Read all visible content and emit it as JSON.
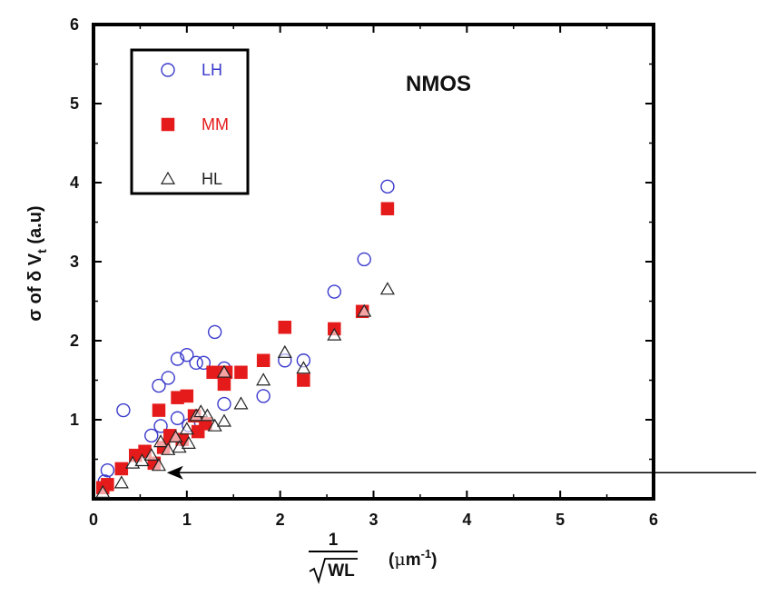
{
  "chart_data": {
    "type": "scatter",
    "title": "",
    "annotation": "NMOS",
    "xlabel": {
      "numerator": "1",
      "radicand": "WL",
      "unit_prefix": "(",
      "unit_mu": "μ",
      "unit_m": "m",
      "unit_exp": "-1",
      "unit_suffix": ")"
    },
    "ylabel": "σ of δ V",
    "ylabel_sub": "t",
    "ylabel_suffix": " (a.u)",
    "xlim": [
      0,
      6
    ],
    "ylim": [
      0,
      6
    ],
    "xticks": [
      "0",
      "1",
      "2",
      "3",
      "4",
      "5",
      "6"
    ],
    "yticks": [
      "1",
      "2",
      "3",
      "4",
      "5",
      "6"
    ],
    "legend_position": "top-left",
    "grid": false,
    "series": [
      {
        "name": "LH",
        "marker": "circle-open",
        "color": "#3a3acc",
        "points": [
          [
            0.12,
            0.22
          ],
          [
            0.15,
            0.36
          ],
          [
            0.32,
            1.12
          ],
          [
            0.62,
            0.8
          ],
          [
            0.7,
            1.43
          ],
          [
            0.72,
            0.92
          ],
          [
            0.8,
            1.53
          ],
          [
            0.9,
            1.77
          ],
          [
            0.9,
            1.02
          ],
          [
            1.0,
            1.82
          ],
          [
            1.02,
            0.93
          ],
          [
            1.1,
            1.72
          ],
          [
            1.18,
            1.72
          ],
          [
            1.3,
            2.11
          ],
          [
            1.4,
            1.65
          ],
          [
            1.4,
            1.2
          ],
          [
            1.82,
            1.3
          ],
          [
            2.05,
            1.75
          ],
          [
            2.25,
            1.75
          ],
          [
            2.58,
            2.62
          ],
          [
            2.9,
            3.03
          ],
          [
            3.15,
            3.95
          ]
        ]
      },
      {
        "name": "MM",
        "marker": "square-filled",
        "color": "#e51a1a",
        "points": [
          [
            0.1,
            0.14
          ],
          [
            0.15,
            0.18
          ],
          [
            0.3,
            0.38
          ],
          [
            0.45,
            0.55
          ],
          [
            0.55,
            0.6
          ],
          [
            0.65,
            0.45
          ],
          [
            0.7,
            1.12
          ],
          [
            0.75,
            0.65
          ],
          [
            0.82,
            0.8
          ],
          [
            0.9,
            1.28
          ],
          [
            0.95,
            0.75
          ],
          [
            1.0,
            1.3
          ],
          [
            1.08,
            1.05
          ],
          [
            1.12,
            0.85
          ],
          [
            1.2,
            0.95
          ],
          [
            1.28,
            1.6
          ],
          [
            1.4,
            1.45
          ],
          [
            1.42,
            1.6
          ],
          [
            1.58,
            1.6
          ],
          [
            1.82,
            1.75
          ],
          [
            2.05,
            2.17
          ],
          [
            2.25,
            1.5
          ],
          [
            2.58,
            2.15
          ],
          [
            2.88,
            2.37
          ],
          [
            3.15,
            3.67
          ]
        ]
      },
      {
        "name": "HL",
        "marker": "triangle-open",
        "color": "#222222",
        "points": [
          [
            0.1,
            0.08
          ],
          [
            0.3,
            0.2
          ],
          [
            0.42,
            0.45
          ],
          [
            0.52,
            0.48
          ],
          [
            0.62,
            0.55
          ],
          [
            0.7,
            0.42
          ],
          [
            0.72,
            0.72
          ],
          [
            0.8,
            0.62
          ],
          [
            0.88,
            0.78
          ],
          [
            0.92,
            0.65
          ],
          [
            1.0,
            0.88
          ],
          [
            1.02,
            0.7
          ],
          [
            1.1,
            1.05
          ],
          [
            1.15,
            1.1
          ],
          [
            1.22,
            1.05
          ],
          [
            1.3,
            0.92
          ],
          [
            1.4,
            0.98
          ],
          [
            1.4,
            1.6
          ],
          [
            1.58,
            1.2
          ],
          [
            1.82,
            1.5
          ],
          [
            2.05,
            1.85
          ],
          [
            2.25,
            1.65
          ],
          [
            2.58,
            2.07
          ],
          [
            2.9,
            2.37
          ],
          [
            3.15,
            2.65
          ]
        ]
      }
    ],
    "arrow": {
      "from": [
        7.1,
        0.33
      ],
      "to": [
        0.8,
        0.33
      ]
    }
  }
}
